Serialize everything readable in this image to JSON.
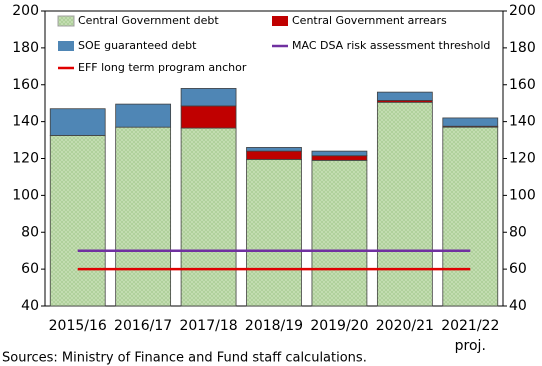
{
  "chart_data": {
    "type": "bar",
    "categories": [
      "2015/16",
      "2016/17",
      "2017/18",
      "2018/19",
      "2019/20",
      "2020/21",
      "2021/22"
    ],
    "category_notes": [
      null,
      null,
      null,
      null,
      null,
      null,
      "proj."
    ],
    "series": [
      {
        "name": "Central Government debt",
        "type": "bar",
        "color": "#c6dfb5",
        "values": [
          132.5,
          137,
          136.5,
          119.5,
          119,
          150.5,
          137
        ]
      },
      {
        "name": "Central Government arrears",
        "type": "bar",
        "color": "#c00000",
        "values": [
          0,
          0,
          12,
          4.5,
          2.5,
          1,
          0.5
        ]
      },
      {
        "name": "SOE guaranteed debt",
        "type": "bar",
        "color": "#4f86b5",
        "values": [
          14.5,
          12.5,
          9.5,
          2,
          2.5,
          4.5,
          4.5
        ]
      },
      {
        "name": "MAC DSA risk assessment threshold",
        "type": "line",
        "color": "#7030a0",
        "values": [
          70,
          70,
          70,
          70,
          70,
          70,
          70
        ]
      },
      {
        "name": "EFF long term program anchor",
        "type": "line",
        "color": "#e00000",
        "values": [
          60,
          60,
          60,
          60,
          60,
          60,
          60
        ]
      }
    ],
    "ylim": [
      40,
      200
    ],
    "yticks": [
      40,
      60,
      80,
      100,
      120,
      140,
      160,
      180,
      200
    ],
    "y2lim": [
      40,
      200
    ],
    "y2ticks": [
      40,
      60,
      80,
      100,
      120,
      140,
      160,
      180,
      200
    ],
    "source": "Sources: Ministry of Finance and Fund staff calculations."
  }
}
